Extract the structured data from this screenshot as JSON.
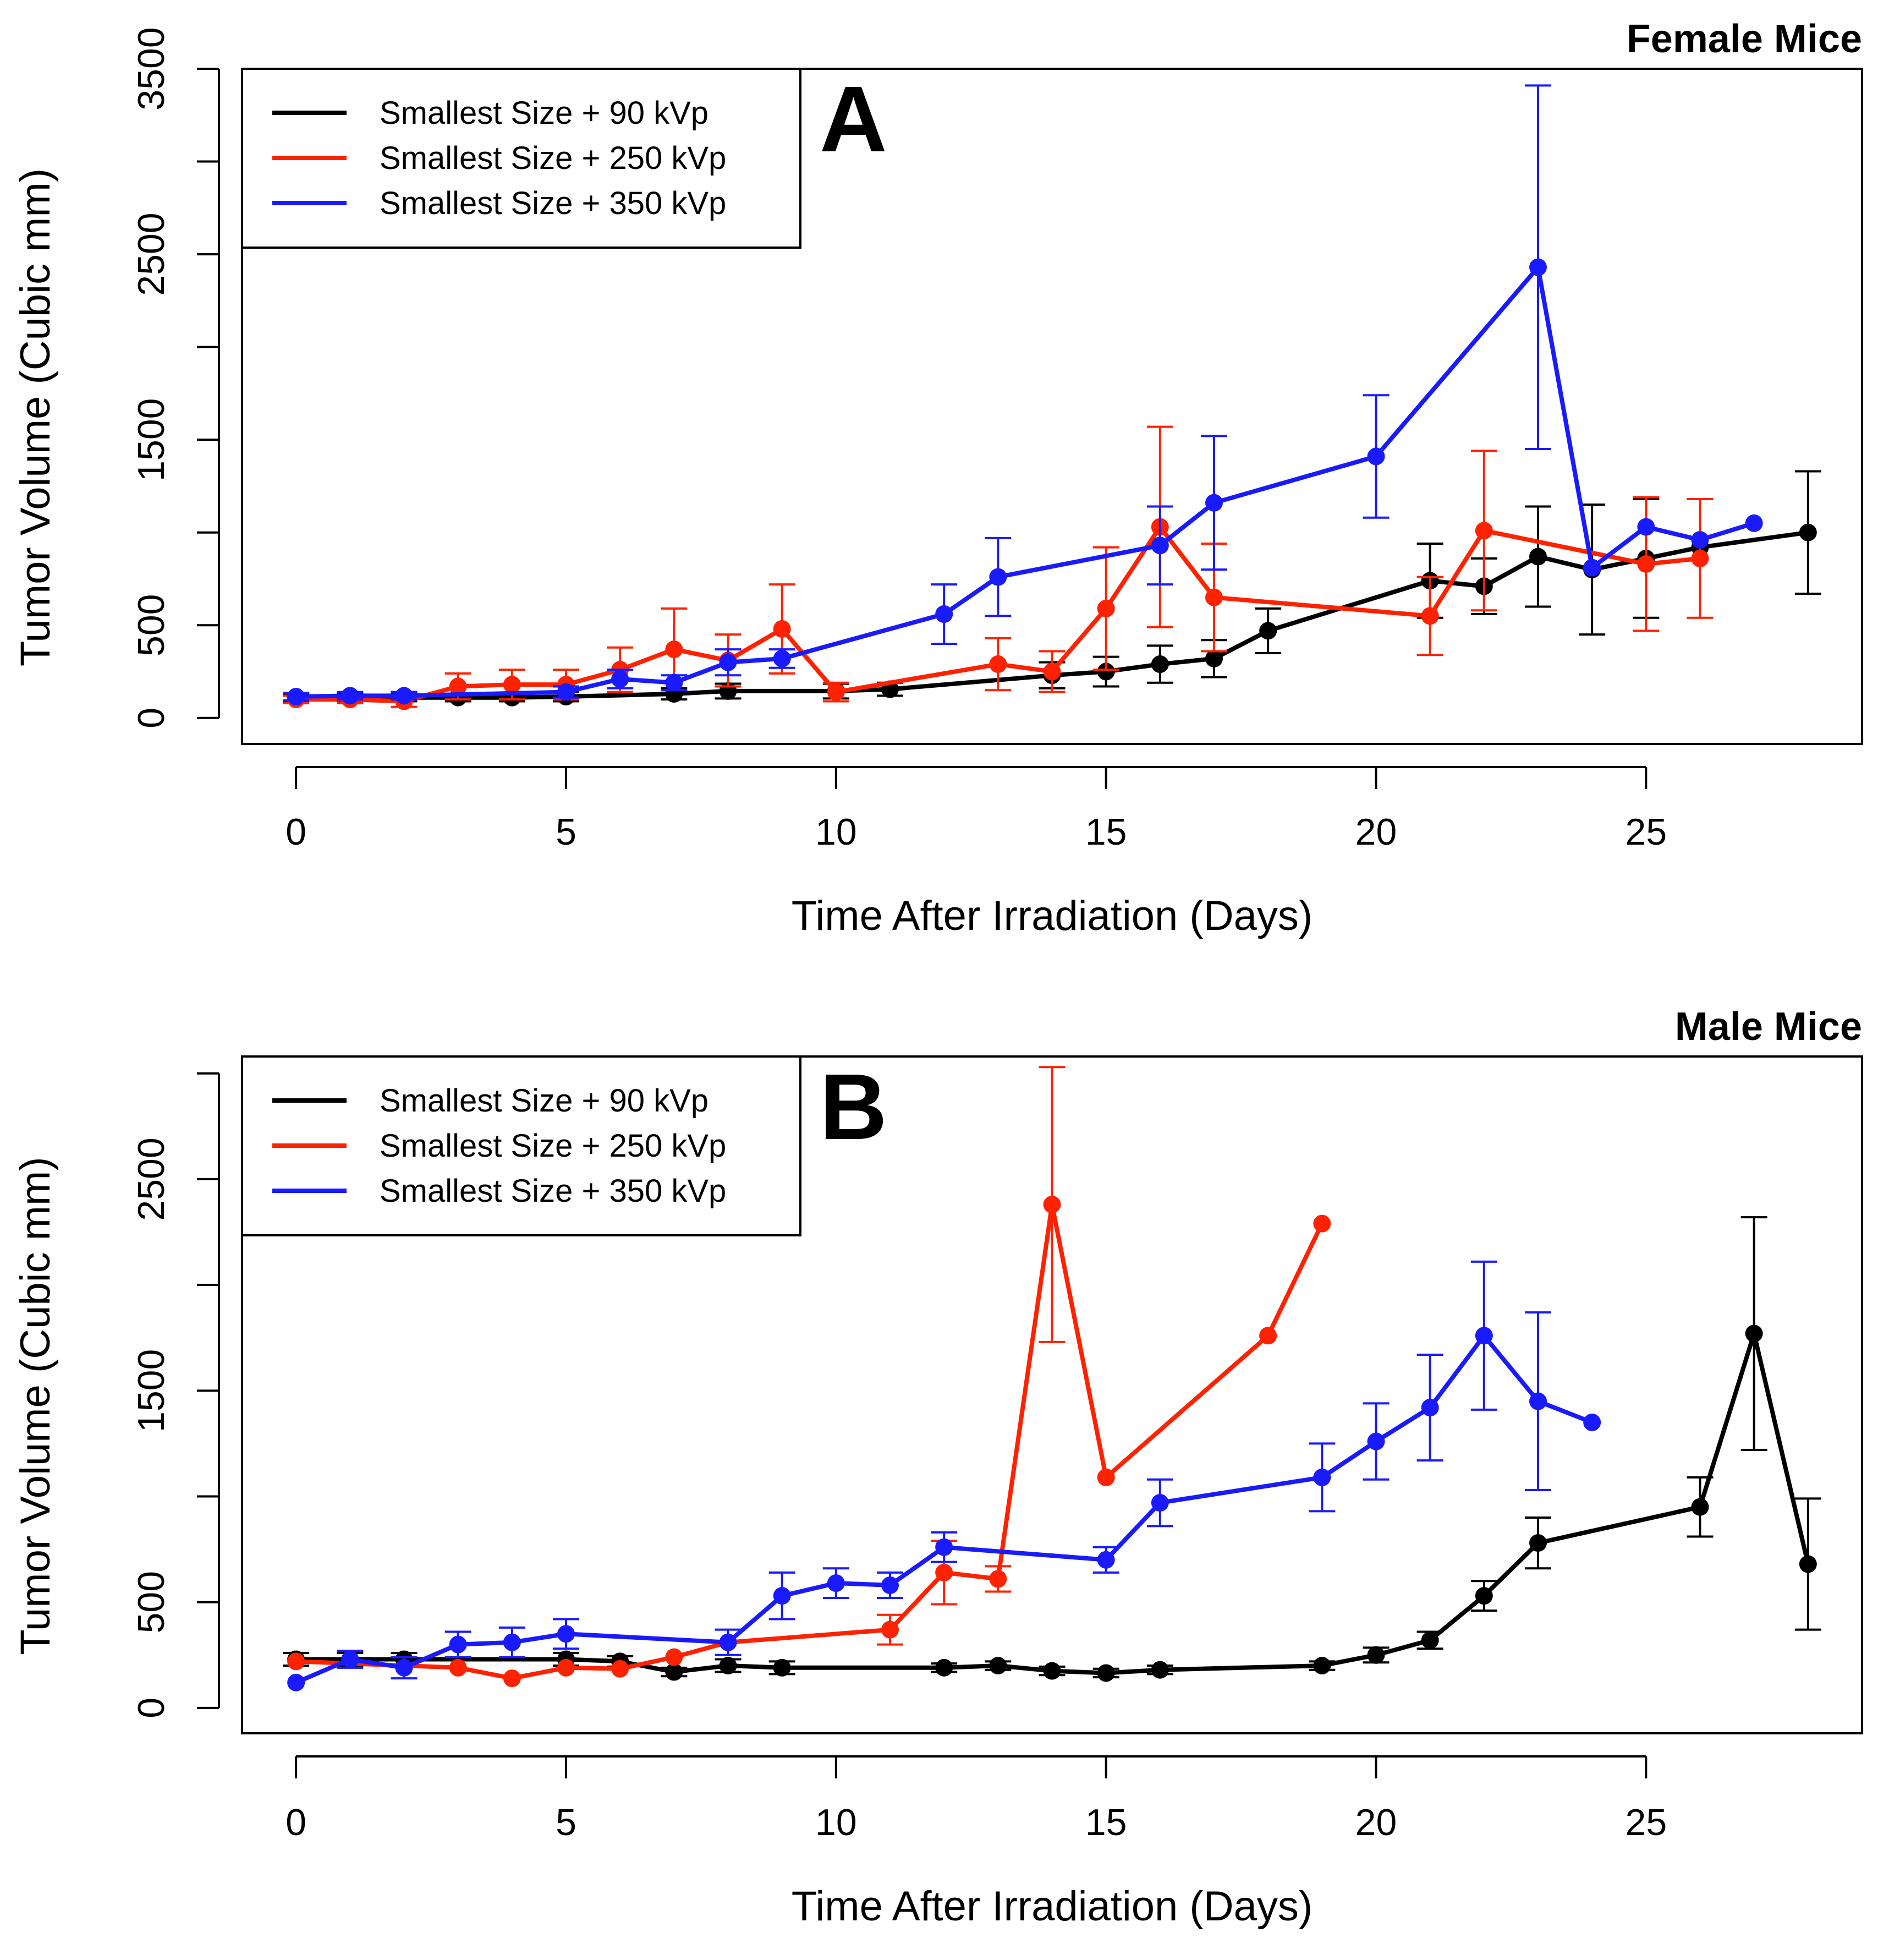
{
  "chart_data": [
    {
      "type": "line",
      "panel_label": "A",
      "title": "Female Mice",
      "xlabel": "Time After Irradiation (Days)",
      "ylabel": "Tumor Volume (Cubic mm)",
      "xlim": [
        -1,
        29
      ],
      "ylim": [
        -140,
        3500
      ],
      "xticks": [
        0,
        5,
        10,
        15,
        20,
        25
      ],
      "yticks": [
        0,
        500,
        1000,
        1500,
        2000,
        2500,
        3000,
        3500
      ],
      "ytick_labels": [
        "0",
        "500",
        "",
        "1500",
        "",
        "2500",
        "",
        "3500"
      ],
      "legend_position": "top-left",
      "series": [
        {
          "name": "Smallest Size + 90 kVp",
          "color": "#000000",
          "x": [
            0,
            1,
            2,
            3,
            4,
            5,
            7,
            8,
            10,
            11,
            14,
            15,
            16,
            17,
            18,
            21,
            22,
            23,
            24,
            25,
            26,
            28
          ],
          "y": [
            110,
            110,
            110,
            110,
            110,
            115,
            130,
            145,
            145,
            155,
            230,
            250,
            290,
            320,
            470,
            740,
            710,
            870,
            800,
            860,
            920,
            1000
          ],
          "err": [
            20,
            20,
            20,
            20,
            20,
            25,
            30,
            40,
            40,
            35,
            70,
            80,
            100,
            100,
            120,
            200,
            150,
            270,
            350,
            320,
            0,
            330
          ]
        },
        {
          "name": "Smallest Size + 250 kVp",
          "color": "#ff2200",
          "x": [
            0,
            1,
            2,
            3,
            4,
            5,
            6,
            7,
            8,
            9,
            10,
            13,
            14,
            15,
            16,
            17,
            21,
            22,
            25,
            26
          ],
          "y": [
            100,
            100,
            90,
            170,
            180,
            180,
            260,
            370,
            310,
            480,
            140,
            290,
            250,
            590,
            1030,
            650,
            550,
            1010,
            830,
            860
          ],
          "err": [
            20,
            20,
            30,
            70,
            80,
            80,
            120,
            220,
            140,
            240,
            50,
            140,
            110,
            330,
            540,
            290,
            210,
            430,
            360,
            320
          ]
        },
        {
          "name": "Smallest Size + 350 kVp",
          "color": "#1a1aff",
          "x": [
            0,
            1,
            2,
            5,
            6,
            7,
            8,
            9,
            12,
            13,
            16,
            17,
            20,
            23,
            24,
            25,
            26,
            27
          ],
          "y": [
            115,
            120,
            120,
            140,
            210,
            190,
            300,
            320,
            560,
            760,
            930,
            1160,
            1410,
            2430,
            810,
            1030,
            960,
            1050
          ],
          "err": [
            20,
            20,
            20,
            30,
            50,
            40,
            70,
            50,
            160,
            210,
            210,
            360,
            330,
            980,
            0,
            0,
            0,
            0
          ]
        }
      ]
    },
    {
      "type": "line",
      "panel_label": "B",
      "title": "Male Mice",
      "xlabel": "Time After Irradiation (Days)",
      "ylabel": "Tumor Volume (Cubic mm)",
      "xlim": [
        -1,
        29
      ],
      "ylim": [
        -120,
        3080
      ],
      "xticks": [
        0,
        5,
        10,
        15,
        20,
        25
      ],
      "yticks": [
        0,
        500,
        1000,
        1500,
        2000,
        2500,
        3000
      ],
      "ytick_labels": [
        "0",
        "500",
        "",
        "1500",
        "",
        "2500",
        ""
      ],
      "legend_position": "top-left",
      "series": [
        {
          "name": "Smallest Size + 90 kVp",
          "color": "#000000",
          "x": [
            0,
            1,
            2,
            5,
            6,
            7,
            8,
            9,
            12,
            13,
            14,
            15,
            16,
            19,
            20,
            21,
            22,
            23,
            26,
            27,
            28
          ],
          "y": [
            230,
            230,
            230,
            230,
            220,
            170,
            200,
            190,
            190,
            200,
            175,
            165,
            180,
            200,
            250,
            320,
            530,
            780,
            950,
            1770,
            680
          ],
          "err": [
            30,
            30,
            30,
            30,
            25,
            20,
            30,
            30,
            20,
            20,
            20,
            20,
            20,
            20,
            35,
            40,
            70,
            120,
            140,
            550,
            310
          ]
        },
        {
          "name": "Smallest Size + 250 kVp",
          "color": "#ff2200",
          "x": [
            0,
            3,
            4,
            5,
            6,
            7,
            8,
            11,
            12,
            13,
            14,
            15,
            18,
            19
          ],
          "y": [
            220,
            190,
            140,
            190,
            185,
            240,
            310,
            370,
            640,
            610,
            2380,
            1090,
            1760,
            2290
          ],
          "err": [
            0,
            0,
            0,
            0,
            0,
            0,
            0,
            70,
            150,
            60,
            650,
            0,
            0,
            0
          ]
        },
        {
          "name": "Smallest Size + 350 kVp",
          "color": "#1a1aff",
          "x": [
            0,
            1,
            2,
            3,
            4,
            5,
            8,
            9,
            10,
            11,
            12,
            15,
            16,
            19,
            20,
            21,
            22,
            23,
            24
          ],
          "y": [
            120,
            230,
            190,
            300,
            310,
            350,
            310,
            530,
            590,
            580,
            760,
            700,
            970,
            1090,
            1260,
            1420,
            1760,
            1450,
            1350
          ],
          "err": [
            0,
            40,
            50,
            60,
            70,
            70,
            60,
            110,
            70,
            60,
            70,
            60,
            110,
            160,
            180,
            250,
            350,
            420,
            0
          ]
        }
      ]
    }
  ]
}
